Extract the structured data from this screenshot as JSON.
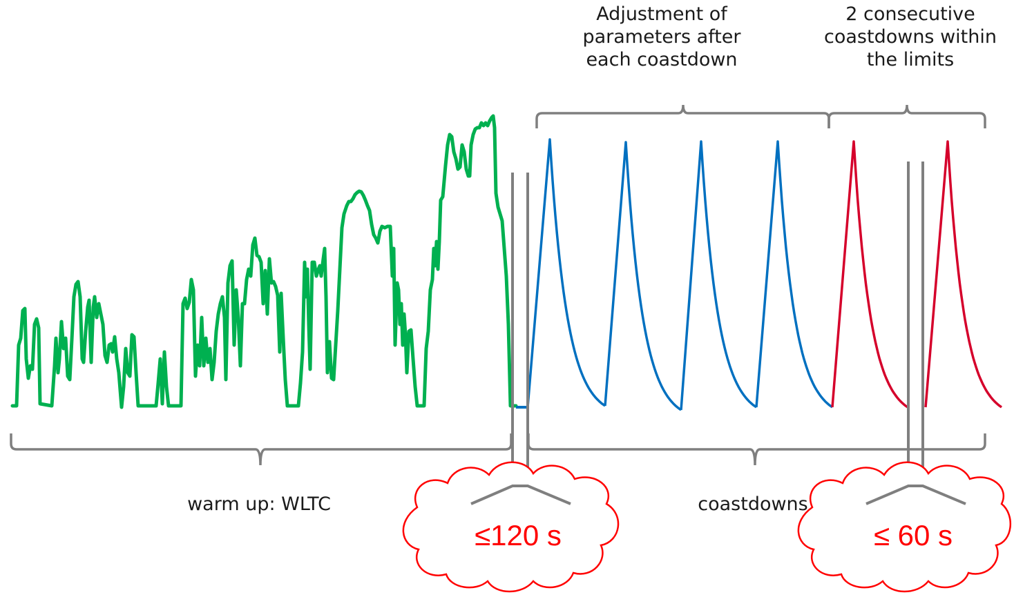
{
  "labels": {
    "adjustment": "Adjustment of\nparameters after\neach coastdown",
    "consecutive": "2 consecutive\ncoastdowns within\nthe limits",
    "warmup": "warm up: WLTC",
    "coastdowns": "coastdowns"
  },
  "clouds": {
    "first": "≤120 s",
    "second": "≤ 60 s"
  },
  "colors": {
    "wltc_trace": "#00b050",
    "coastdown_adjust": "#0070c0",
    "coastdown_valid": "#d5002b",
    "bracket": "#7f7f7f",
    "cloud": "#ff0000"
  }
}
